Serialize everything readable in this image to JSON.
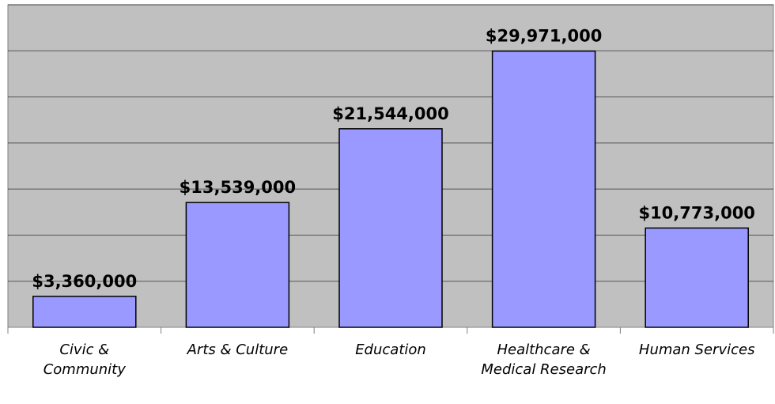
{
  "chart_data": {
    "type": "bar",
    "categories": [
      "Civic & Community",
      "Arts & Culture",
      "Education",
      "Healthcare & Medical Research",
      "Human Services"
    ],
    "values": [
      3360000,
      13539000,
      21544000,
      29971000,
      10773000
    ],
    "value_labels": [
      "$3,360,000",
      "$13,539,000",
      "$21,544,000",
      "$29,971,000",
      "$10,773,000"
    ],
    "color": "#9999ff",
    "ylim": [
      0,
      35000000
    ],
    "yticks": [
      0,
      5000000,
      10000000,
      15000000,
      20000000,
      25000000,
      30000000,
      35000000
    ],
    "grid": true
  }
}
